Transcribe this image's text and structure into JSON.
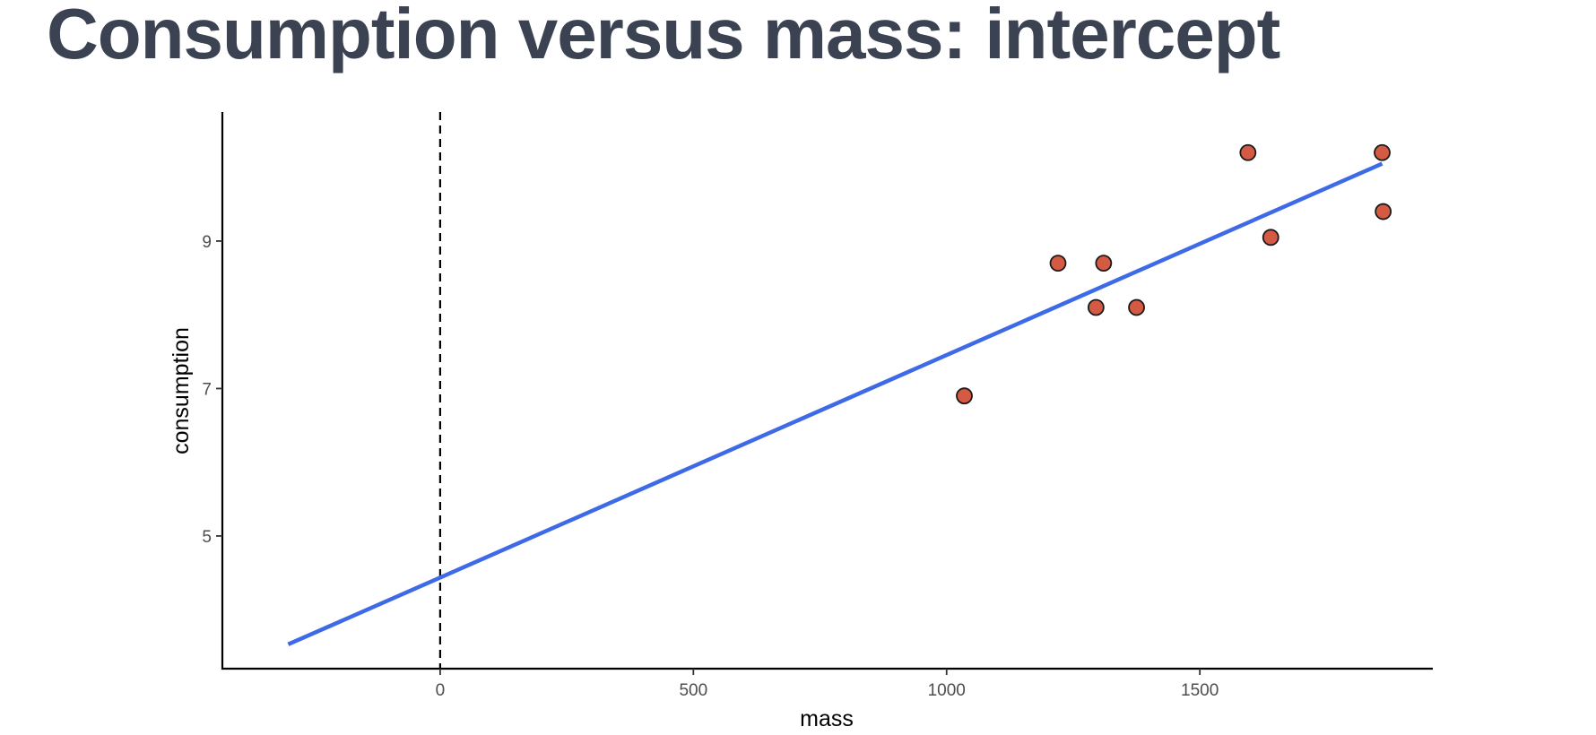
{
  "page": {
    "title": "Consumption versus mass: intercept"
  },
  "chart_data": {
    "type": "scatter",
    "title": "Consumption versus mass: intercept",
    "xlabel": "mass",
    "ylabel": "consumption",
    "xlim": [
      -430,
      1960
    ],
    "ylim": [
      3.2,
      10.75
    ],
    "xticks": [
      0,
      500,
      1000,
      1500
    ],
    "yticks": [
      5,
      7,
      9
    ],
    "grid": false,
    "points": [
      {
        "x": 1035,
        "y": 6.9
      },
      {
        "x": 1220,
        "y": 8.7
      },
      {
        "x": 1295,
        "y": 8.1
      },
      {
        "x": 1310,
        "y": 8.7
      },
      {
        "x": 1375,
        "y": 8.1
      },
      {
        "x": 1595,
        "y": 10.2
      },
      {
        "x": 1640,
        "y": 9.05
      },
      {
        "x": 1860,
        "y": 10.2
      },
      {
        "x": 1862,
        "y": 9.4
      }
    ],
    "fit_line": {
      "x": [
        -300,
        1860
      ],
      "y": [
        3.53,
        10.05
      ]
    },
    "vline": {
      "x": 0,
      "style": "dashed"
    },
    "colors": {
      "point_fill": "#d45a44",
      "point_stroke": "#1a1a1a",
      "fit_line": "#3e6ae8",
      "axis": "#000000",
      "title": "#3b4252"
    }
  }
}
